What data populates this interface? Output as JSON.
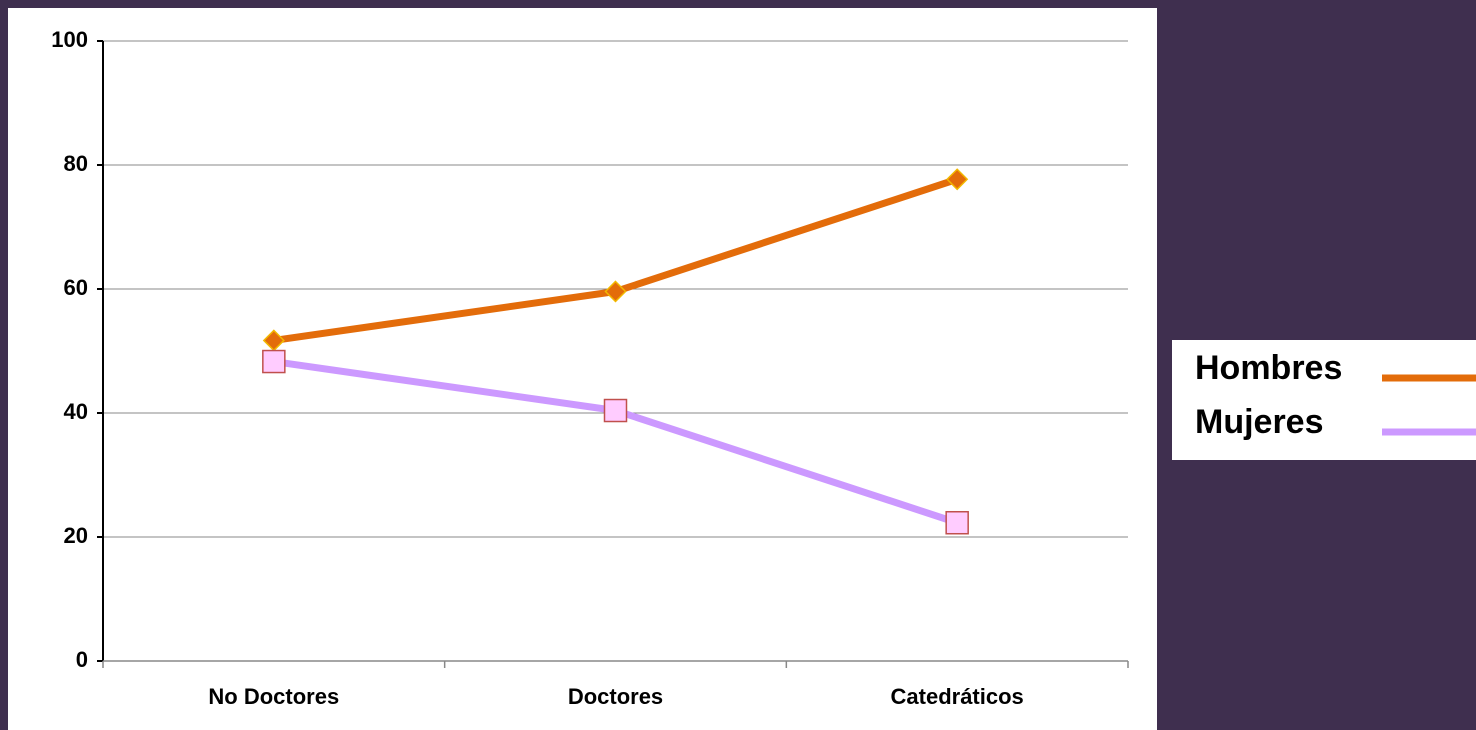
{
  "chart_data": {
    "type": "line",
    "categories": [
      "No Doctores",
      "Doctores",
      "Catedráticos"
    ],
    "series": [
      {
        "name": "Hombres",
        "color": "#e36c0a",
        "marker": "diamond",
        "values": [
          51.7,
          59.6,
          77.7
        ]
      },
      {
        "name": "Mujeres",
        "color": "#cc99ff",
        "marker": "square",
        "values": [
          48.3,
          40.4,
          22.3
        ]
      }
    ],
    "ylim": [
      0,
      100
    ],
    "yticks": [
      0,
      20,
      40,
      60,
      80,
      100
    ],
    "grid": true,
    "legend": "right"
  }
}
